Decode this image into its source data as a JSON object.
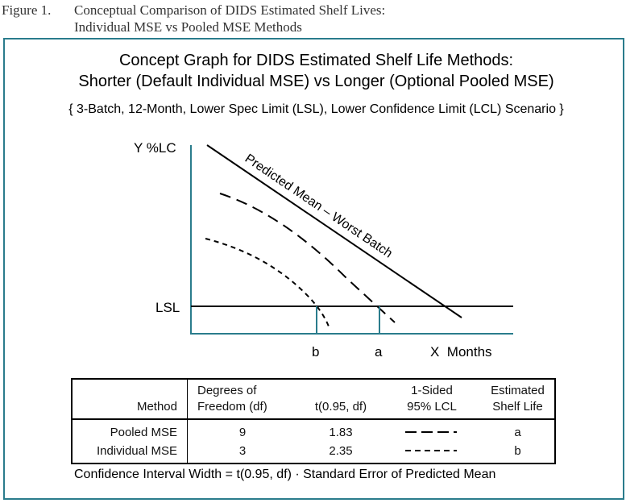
{
  "figure": {
    "label": "Figure 1.",
    "caption_line1": "Conceptual Comparison of DIDS Estimated Shelf Lives:",
    "caption_line2": "Individual MSE vs Pooled MSE Methods"
  },
  "graph": {
    "title_line1": "Concept Graph for DIDS Estimated Shelf Life Methods:",
    "title_line2": "Shorter (Default Individual MSE) vs Longer (Optional Pooled MSE)",
    "scenario": "{ 3-Batch, 12-Month, Lower Spec Limit (LSL), Lower Confidence Limit (LCL) Scenario }",
    "y_label": "Y %LC",
    "x_label": "X  Months",
    "lsl_label": "LSL",
    "mean_line_label": "Predicted Mean – Worst Batch",
    "marker_a": "a",
    "marker_b": "b",
    "axis_color": "#2a7c8c"
  },
  "table": {
    "headers": {
      "method": "Method",
      "df_line1": "Degrees of",
      "df_line2": "Freedom (df)",
      "t": "t(0.95, df)",
      "lcl_line1": "1-Sided",
      "lcl_line2": "95% LCL",
      "shelf_line1": "Estimated",
      "shelf_line2": "Shelf Life"
    },
    "rows": [
      {
        "method": "Pooled MSE",
        "df": "9",
        "t": "1.83",
        "shelf": "a"
      },
      {
        "method": "Individual MSE",
        "df": "3",
        "t": "2.35",
        "shelf": "b"
      }
    ]
  },
  "footnote": "Confidence Interval Width = t(0.95, df) · Standard Error of Predicted Mean"
}
